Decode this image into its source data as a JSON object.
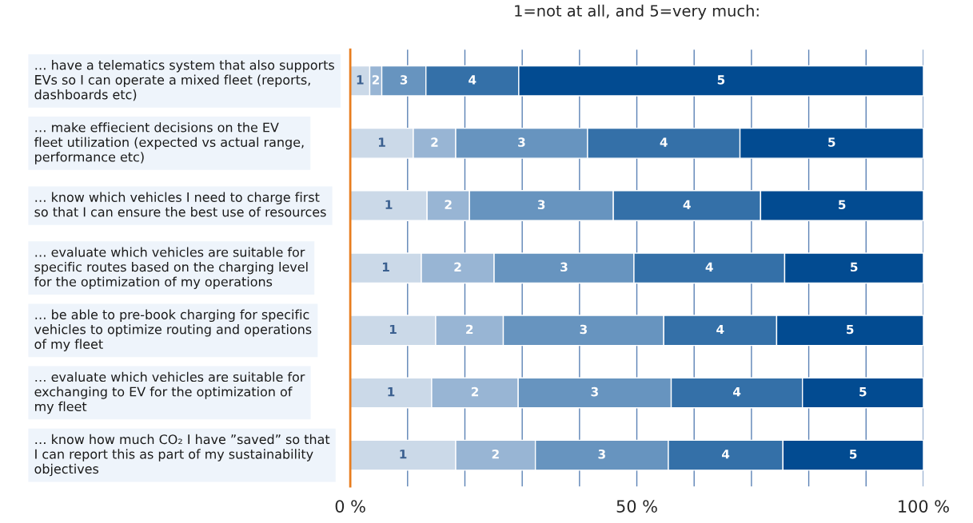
{
  "chart_data": {
    "type": "bar",
    "orientation": "horizontal",
    "stacked": true,
    "title": "1=not at all, and 5=very much:",
    "categories": [
      "… have a telematics system that also supports\nEVs so I can operate a mixed fleet (reports,\ndashboards etc)",
      "… make effiecient decisions on the EV\nfleet utilization (expected vs actual range,\nperformance etc)",
      "… know which vehicles I need to charge first\nso that I can ensure the best use of resources",
      "… evaluate which vehicles are suitable for\nspecific routes based on the charging level\nfor the optimization of my operations",
      "… be able to pre-book charging for specific\nvehicles to optimize routing and operations\nof my fleet",
      "… evaluate which vehicles are suitable for\nexchanging to EV for the optimization of\nmy fleet",
      "… know how much CO₂ I have ”saved” so that\nI can report this as part of my sustainability\nobjectives"
    ],
    "series": [
      {
        "name": "1",
        "color": "#cbd9e8",
        "values": [
          3.4,
          11.0,
          13.4,
          12.4,
          14.9,
          14.2,
          18.4
        ]
      },
      {
        "name": "2",
        "color": "#98b5d4",
        "values": [
          2.1,
          7.4,
          7.4,
          12.7,
          11.8,
          15.1,
          13.9
        ]
      },
      {
        "name": "3",
        "color": "#6794bf",
        "values": [
          7.7,
          23.0,
          25.1,
          24.4,
          28.0,
          26.7,
          23.2
        ]
      },
      {
        "name": "4",
        "color": "#3470a8",
        "values": [
          16.2,
          26.6,
          25.7,
          26.3,
          19.7,
          22.9,
          20.0
        ]
      },
      {
        "name": "5",
        "color": "#024b91",
        "values": [
          70.6,
          32.0,
          28.4,
          24.2,
          25.6,
          21.1,
          24.5
        ]
      }
    ],
    "xlim": [
      0,
      100
    ],
    "xticks": [
      {
        "value": 0,
        "label": "0 %"
      },
      {
        "value": 10,
        "label": null
      },
      {
        "value": 20,
        "label": null
      },
      {
        "value": 30,
        "label": null
      },
      {
        "value": 40,
        "label": null
      },
      {
        "value": 50,
        "label": "50 %"
      },
      {
        "value": 60,
        "label": null
      },
      {
        "value": 70,
        "label": null
      },
      {
        "value": 80,
        "label": null
      },
      {
        "value": 90,
        "label": null
      },
      {
        "value": 100,
        "label": "100 %"
      }
    ],
    "grid": "x",
    "legend": false
  }
}
